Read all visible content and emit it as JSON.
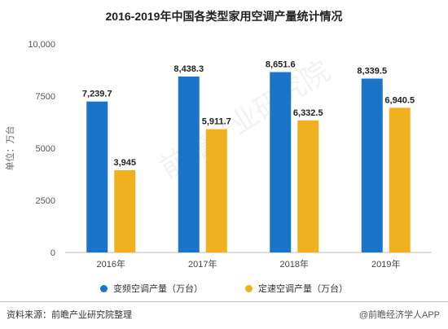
{
  "chart_data": {
    "type": "bar",
    "title": "2016-2019年中国各类型家用空调产量统计情况",
    "ylabel": "单位：万台",
    "ylim": [
      0,
      10000
    ],
    "yticks": [
      "0",
      "2500",
      "5000",
      "7500",
      "10,000"
    ],
    "ytick_values": [
      0,
      2500,
      5000,
      7500,
      10000
    ],
    "categories": [
      "2016年",
      "2017年",
      "2018年",
      "2019年"
    ],
    "series": [
      {
        "name": "变频空调产量（万台）",
        "color": "#1a75c9",
        "values": [
          7239.7,
          8438.3,
          8651.6,
          8339.5
        ],
        "labels": [
          "7,239.7",
          "8,438.3",
          "8,651.6",
          "8,339.5"
        ]
      },
      {
        "name": "定速空调产量（万台）",
        "color": "#f0b020",
        "values": [
          3945,
          5911.7,
          6332.5,
          6940.5
        ],
        "labels": [
          "3,945",
          "5,911.7",
          "6,332.5",
          "6,940.5"
        ]
      }
    ],
    "grid": false,
    "legend": "bottom"
  },
  "footer": {
    "source": "资料来源：前瞻产业研究院整理",
    "credit": "@前瞻经济学人APP"
  },
  "watermark": "前瞻产业研究院"
}
